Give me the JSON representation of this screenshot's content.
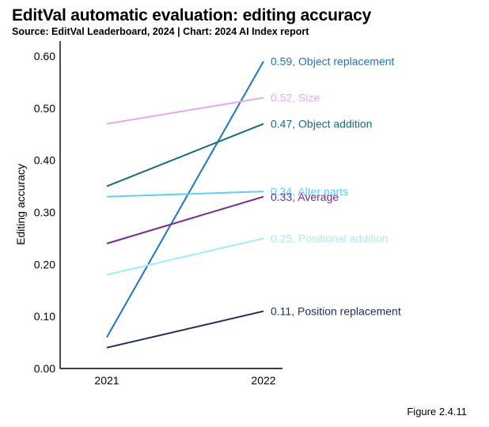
{
  "header": {
    "title": "EditVal automatic evaluation: editing accuracy",
    "subtitle": "Source: EditVal Leaderboard, 2024 | Chart: 2024 AI Index report"
  },
  "footer": {
    "figure_label": "Figure 2.4.11"
  },
  "chart_data": {
    "type": "line",
    "ylabel": "Editing accuracy",
    "ylim": [
      0,
      0.6
    ],
    "yticks": [
      "0.00",
      "0.10",
      "0.20",
      "0.30",
      "0.40",
      "0.50",
      "0.60"
    ],
    "x": [
      "2021",
      "2022"
    ],
    "grid": false,
    "legend": "inline-right",
    "series": [
      {
        "name": "Object replacement",
        "values": [
          0.06,
          0.59
        ],
        "end_label": "0.59, Object replacement",
        "color": "#1f77b4"
      },
      {
        "name": "Size",
        "values": [
          0.47,
          0.52
        ],
        "end_label": "0.52, Size",
        "color": "#e8a6f2"
      },
      {
        "name": "Object addition",
        "values": [
          0.35,
          0.47
        ],
        "end_label": "0.47, Object addition",
        "color": "#1a6b73"
      },
      {
        "name": "Alter parts",
        "values": [
          0.33,
          0.34
        ],
        "end_label": "0.34, Alter parts",
        "color": "#5ecef2"
      },
      {
        "name": "Average",
        "values": [
          0.24,
          0.33
        ],
        "end_label": "0.33, Average",
        "color": "#7b2a8f"
      },
      {
        "name": "Positional addition",
        "values": [
          0.18,
          0.25
        ],
        "end_label": "0.25, Positional addition",
        "color": "#a3ecf4"
      },
      {
        "name": "Position replacement",
        "values": [
          0.04,
          0.11
        ],
        "end_label": "0.11, Position replacement",
        "color": "#1b3057"
      }
    ]
  }
}
